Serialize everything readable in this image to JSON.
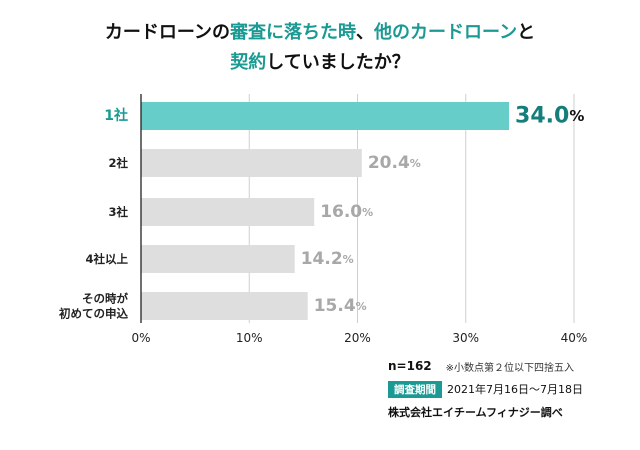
{
  "title": {
    "line1_a": "カードローンの",
    "line1_b": "審査に落ちた時",
    "line1_c": "、",
    "line1_d": "他のカードローン",
    "line1_e": "と",
    "line2_a": "契約",
    "line2_b": "していましたか？"
  },
  "chart_data": {
    "type": "bar",
    "orientation": "horizontal",
    "categories": [
      "1社",
      "2社",
      "3社",
      "4社以上",
      "その時が\n初めての申込"
    ],
    "values": [
      34.0,
      20.4,
      16.0,
      14.2,
      15.4
    ],
    "value_labels": [
      "34.0",
      "20.4",
      "16.0",
      "14.2",
      "15.4"
    ],
    "value_unit": "%",
    "xlim": [
      0,
      40
    ],
    "xticks": [
      "0%",
      "10%",
      "20%",
      "30%",
      "40%"
    ],
    "xtick_values": [
      0,
      10,
      20,
      30,
      40
    ],
    "highlight_index": 0,
    "colors": {
      "highlight": "#66cdc8",
      "default": "#dedede",
      "highlight_text": "#167e7a",
      "default_text": "#a8a8a8"
    }
  },
  "footer": {
    "n": "n=162",
    "note": "※小数点第２位以下四捨五入",
    "period_badge": "調査期間",
    "period": "2021年7月16日〜7月18日",
    "company": "株式会社エイチームフィナジー調べ"
  }
}
